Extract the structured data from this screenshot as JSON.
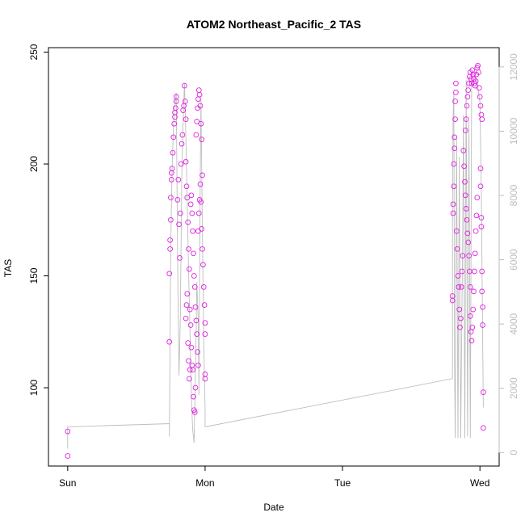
{
  "chart_data": {
    "type": "scatter",
    "title": "ATOM2 Northeast_Pacific_2 TAS",
    "xlabel": "Date",
    "ylabel": "TAS",
    "x_ticks": [
      {
        "label": "Sun",
        "day": 0
      },
      {
        "label": "Mon",
        "day": 1
      },
      {
        "label": "Tue",
        "day": 2
      },
      {
        "label": "Wed",
        "day": 3
      }
    ],
    "y_ticks": [
      100,
      150,
      200,
      250
    ],
    "y2_ticks": [
      0,
      2000,
      4000,
      6000,
      8000,
      10000,
      12000
    ],
    "xlim": [
      -0.14,
      3.14
    ],
    "ylim": [
      65,
      252
    ],
    "y2lim": [
      -420,
      12600
    ],
    "grid": false,
    "colors": {
      "points": "#e020e0",
      "altitude_line": "#bdbdbd",
      "axis": "#000000",
      "right_axis": "#bdbdbd"
    },
    "series": [
      {
        "kind": "points",
        "points": [
          [
            0.0,
            80.5
          ],
          [
            0.0,
            69.5
          ],
          [
            0.74,
            120.5
          ],
          [
            0.74,
            151
          ],
          [
            0.745,
            162
          ],
          [
            0.745,
            166
          ],
          [
            0.75,
            175
          ],
          [
            0.75,
            185
          ],
          [
            0.755,
            193
          ],
          [
            0.755,
            196
          ],
          [
            0.76,
            198
          ],
          [
            0.765,
            205
          ],
          [
            0.77,
            212
          ],
          [
            0.775,
            218
          ],
          [
            0.78,
            221
          ],
          [
            0.78,
            223
          ],
          [
            0.785,
            225
          ],
          [
            0.79,
            228
          ],
          [
            0.79,
            230
          ],
          [
            0.8,
            184
          ],
          [
            0.805,
            193
          ],
          [
            0.81,
            173
          ],
          [
            0.815,
            158
          ],
          [
            0.82,
            178
          ],
          [
            0.825,
            200
          ],
          [
            0.83,
            209
          ],
          [
            0.835,
            213
          ],
          [
            0.84,
            224
          ],
          [
            0.845,
            226
          ],
          [
            0.85,
            235
          ],
          [
            0.855,
            228
          ],
          [
            0.86,
            220
          ],
          [
            0.86,
            201
          ],
          [
            0.865,
            190
          ],
          [
            0.87,
            185
          ],
          [
            0.875,
            174
          ],
          [
            0.88,
            162
          ],
          [
            0.885,
            153
          ],
          [
            0.89,
            135
          ],
          [
            0.895,
            128
          ],
          [
            0.9,
            118
          ],
          [
            0.905,
            110
          ],
          [
            0.91,
            108
          ],
          [
            0.915,
            96
          ],
          [
            0.92,
            90
          ],
          [
            0.925,
            89
          ],
          [
            0.93,
            100
          ],
          [
            0.86,
            131
          ],
          [
            0.865,
            137
          ],
          [
            0.87,
            142
          ],
          [
            0.875,
            120
          ],
          [
            0.88,
            112
          ],
          [
            0.885,
            104
          ],
          [
            0.89,
            108
          ],
          [
            0.895,
            182
          ],
          [
            0.9,
            186
          ],
          [
            0.905,
            178
          ],
          [
            0.91,
            170
          ],
          [
            0.915,
            160
          ],
          [
            0.92,
            150
          ],
          [
            0.925,
            145
          ],
          [
            0.93,
            136
          ],
          [
            0.935,
            130
          ],
          [
            0.94,
            124
          ],
          [
            0.945,
            116
          ],
          [
            0.95,
            110
          ],
          [
            0.935,
            213
          ],
          [
            0.94,
            219
          ],
          [
            0.945,
            225
          ],
          [
            0.95,
            229
          ],
          [
            0.955,
            233
          ],
          [
            0.96,
            231
          ],
          [
            0.965,
            226
          ],
          [
            0.97,
            218
          ],
          [
            0.975,
            211
          ],
          [
            0.98,
            195
          ],
          [
            0.95,
            170
          ],
          [
            0.955,
            178
          ],
          [
            0.96,
            184
          ],
          [
            0.965,
            191
          ],
          [
            0.97,
            183
          ],
          [
            0.975,
            171
          ],
          [
            0.98,
            162
          ],
          [
            0.985,
            155
          ],
          [
            0.99,
            145
          ],
          [
            0.995,
            137
          ],
          [
            1.0,
            129
          ],
          [
            1.0,
            124
          ],
          [
            1.0,
            106
          ],
          [
            1.0,
            104
          ],
          [
            2.8,
            141
          ],
          [
            2.8,
            139
          ],
          [
            2.805,
            178
          ],
          [
            2.805,
            182
          ],
          [
            2.81,
            190
          ],
          [
            2.81,
            200
          ],
          [
            2.815,
            207
          ],
          [
            2.815,
            212
          ],
          [
            2.82,
            220
          ],
          [
            2.82,
            228
          ],
          [
            2.825,
            232
          ],
          [
            2.825,
            236
          ],
          [
            2.83,
            170
          ],
          [
            2.835,
            162
          ],
          [
            2.84,
            150
          ],
          [
            2.845,
            145
          ],
          [
            2.85,
            135
          ],
          [
            2.855,
            127
          ],
          [
            2.86,
            131
          ],
          [
            2.865,
            145
          ],
          [
            2.87,
            152
          ],
          [
            2.875,
            159
          ],
          [
            2.88,
            206
          ],
          [
            2.885,
            199
          ],
          [
            2.89,
            192
          ],
          [
            2.895,
            186
          ],
          [
            2.9,
            180
          ],
          [
            2.905,
            175
          ],
          [
            2.91,
            169
          ],
          [
            2.915,
            165
          ],
          [
            2.92,
            159
          ],
          [
            2.925,
            152
          ],
          [
            2.93,
            145
          ],
          [
            2.895,
            215
          ],
          [
            2.9,
            220
          ],
          [
            2.905,
            226
          ],
          [
            2.91,
            230
          ],
          [
            2.915,
            233
          ],
          [
            2.92,
            236
          ],
          [
            2.925,
            239
          ],
          [
            2.93,
            241
          ],
          [
            2.935,
            238
          ],
          [
            2.94,
            236
          ],
          [
            2.93,
            132
          ],
          [
            2.935,
            125
          ],
          [
            2.94,
            121
          ],
          [
            2.945,
            127
          ],
          [
            2.95,
            135
          ],
          [
            2.955,
            143
          ],
          [
            2.96,
            152
          ],
          [
            2.965,
            160
          ],
          [
            2.97,
            170
          ],
          [
            2.975,
            177
          ],
          [
            2.98,
            185
          ],
          [
            2.945,
            242
          ],
          [
            2.95,
            240
          ],
          [
            2.955,
            238
          ],
          [
            2.96,
            236
          ],
          [
            2.965,
            235
          ],
          [
            2.97,
            237
          ],
          [
            2.975,
            240
          ],
          [
            2.98,
            243
          ],
          [
            2.985,
            244
          ],
          [
            2.99,
            241
          ],
          [
            2.995,
            234
          ],
          [
            3.0,
            230
          ],
          [
            3.005,
            226
          ],
          [
            3.01,
            222
          ],
          [
            3.015,
            220
          ],
          [
            3.005,
            198
          ],
          [
            3.005,
            190
          ],
          [
            3.01,
            176
          ],
          [
            3.01,
            172
          ],
          [
            3.015,
            152
          ],
          [
            3.015,
            143
          ],
          [
            3.02,
            136
          ],
          [
            3.02,
            128
          ],
          [
            3.025,
            98
          ],
          [
            3.025,
            82
          ]
        ]
      },
      {
        "kind": "line",
        "axis": "right",
        "points": [
          [
            0.0,
            120
          ],
          [
            0.0,
            800
          ],
          [
            0.74,
            900
          ],
          [
            0.74,
            500
          ],
          [
            0.745,
            3500
          ],
          [
            0.75,
            6500
          ],
          [
            0.76,
            8800
          ],
          [
            0.77,
            10200
          ],
          [
            0.78,
            10800
          ],
          [
            0.79,
            11200
          ],
          [
            0.8,
            6000
          ],
          [
            0.81,
            2400
          ],
          [
            0.82,
            4200
          ],
          [
            0.83,
            8500
          ],
          [
            0.84,
            10300
          ],
          [
            0.85,
            11500
          ],
          [
            0.86,
            9800
          ],
          [
            0.87,
            7800
          ],
          [
            0.88,
            5600
          ],
          [
            0.89,
            3800
          ],
          [
            0.9,
            1700
          ],
          [
            0.91,
            700
          ],
          [
            0.92,
            300
          ],
          [
            0.93,
            2600
          ],
          [
            0.935,
            3800
          ],
          [
            0.94,
            5300
          ],
          [
            0.95,
            4200
          ],
          [
            0.955,
            1800
          ],
          [
            0.96,
            5700
          ],
          [
            0.965,
            8600
          ],
          [
            0.97,
            11000
          ],
          [
            0.98,
            7100
          ],
          [
            0.99,
            3500
          ],
          [
            1.0,
            1400
          ],
          [
            1.0,
            800
          ],
          [
            1.0,
            800
          ],
          [
            2.8,
            2300
          ],
          [
            2.8,
            7500
          ],
          [
            2.805,
            10500
          ],
          [
            2.81,
            11200
          ],
          [
            2.815,
            3000
          ],
          [
            2.82,
            450
          ],
          [
            2.83,
            9800
          ],
          [
            2.84,
            450
          ],
          [
            2.85,
            9200
          ],
          [
            2.86,
            450
          ],
          [
            2.875,
            7000
          ],
          [
            2.88,
            10500
          ],
          [
            2.89,
            450
          ],
          [
            2.9,
            11600
          ],
          [
            2.91,
            500
          ],
          [
            2.92,
            10300
          ],
          [
            2.93,
            450
          ],
          [
            2.94,
            11800
          ],
          [
            2.96,
            11700
          ],
          [
            2.98,
            11500
          ],
          [
            3.0,
            10900
          ],
          [
            3.01,
            8200
          ],
          [
            3.02,
            3500
          ],
          [
            3.025,
            1400
          ]
        ]
      }
    ]
  }
}
